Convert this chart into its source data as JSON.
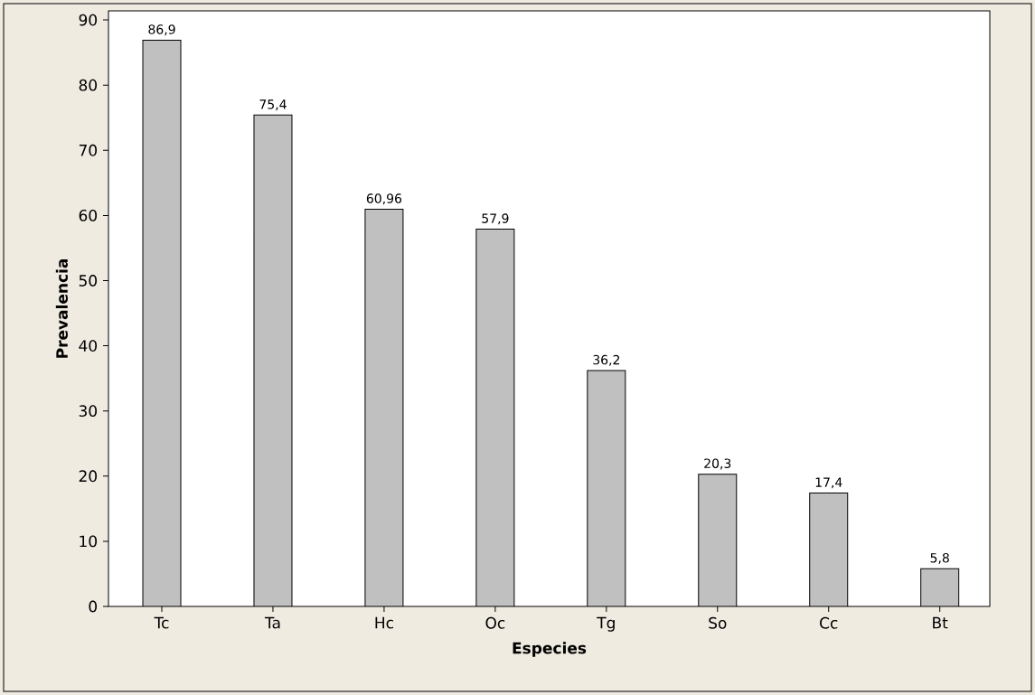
{
  "chart_data": {
    "type": "bar",
    "xlabel": "Especies",
    "ylabel": "Prevalencia",
    "categories": [
      "Tc",
      "Ta",
      "Hc",
      "Oc",
      "Tg",
      "So",
      "Cc",
      "Bt"
    ],
    "values": [
      86.9,
      75.4,
      60.96,
      57.9,
      36.2,
      20.3,
      17.4,
      5.8
    ],
    "value_labels": [
      "86,9",
      "75,4",
      "60,96",
      "57,9",
      "36,2",
      "20,3",
      "17,4",
      "5,8"
    ],
    "color": "#c0c0c0",
    "ylim": [
      0,
      91.4
    ],
    "yticks": [
      0,
      10,
      20,
      30,
      40,
      50,
      60,
      70,
      80,
      90
    ],
    "grid": false
  }
}
